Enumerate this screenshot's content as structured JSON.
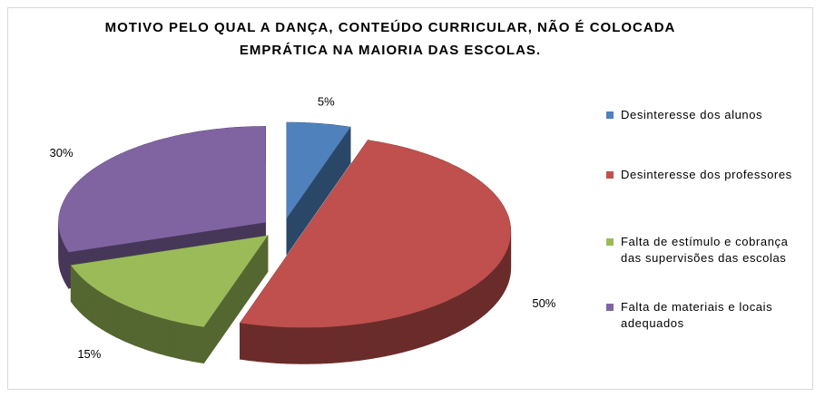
{
  "chart_data": {
    "type": "pie",
    "title": "MOTIVO PELO QUAL A DANÇA, CONTEÚDO CURRICULAR, NÃO É COLOCADA EMPRÁTICA NA MAIORIA DAS ESCOLAS.",
    "categories": [
      "Desinteresse dos alunos",
      "Desinteresse dos professores",
      "Falta de estímulo e cobrança das supervisões das escolas",
      "Falta de materiais e locais adequados"
    ],
    "values": [
      5,
      50,
      15,
      30
    ],
    "value_labels": [
      "5%",
      "50%",
      "15%",
      "30%"
    ],
    "colors": [
      "#4f81bd",
      "#c0504d",
      "#9bbb59",
      "#8064a2"
    ],
    "legend": "right"
  }
}
